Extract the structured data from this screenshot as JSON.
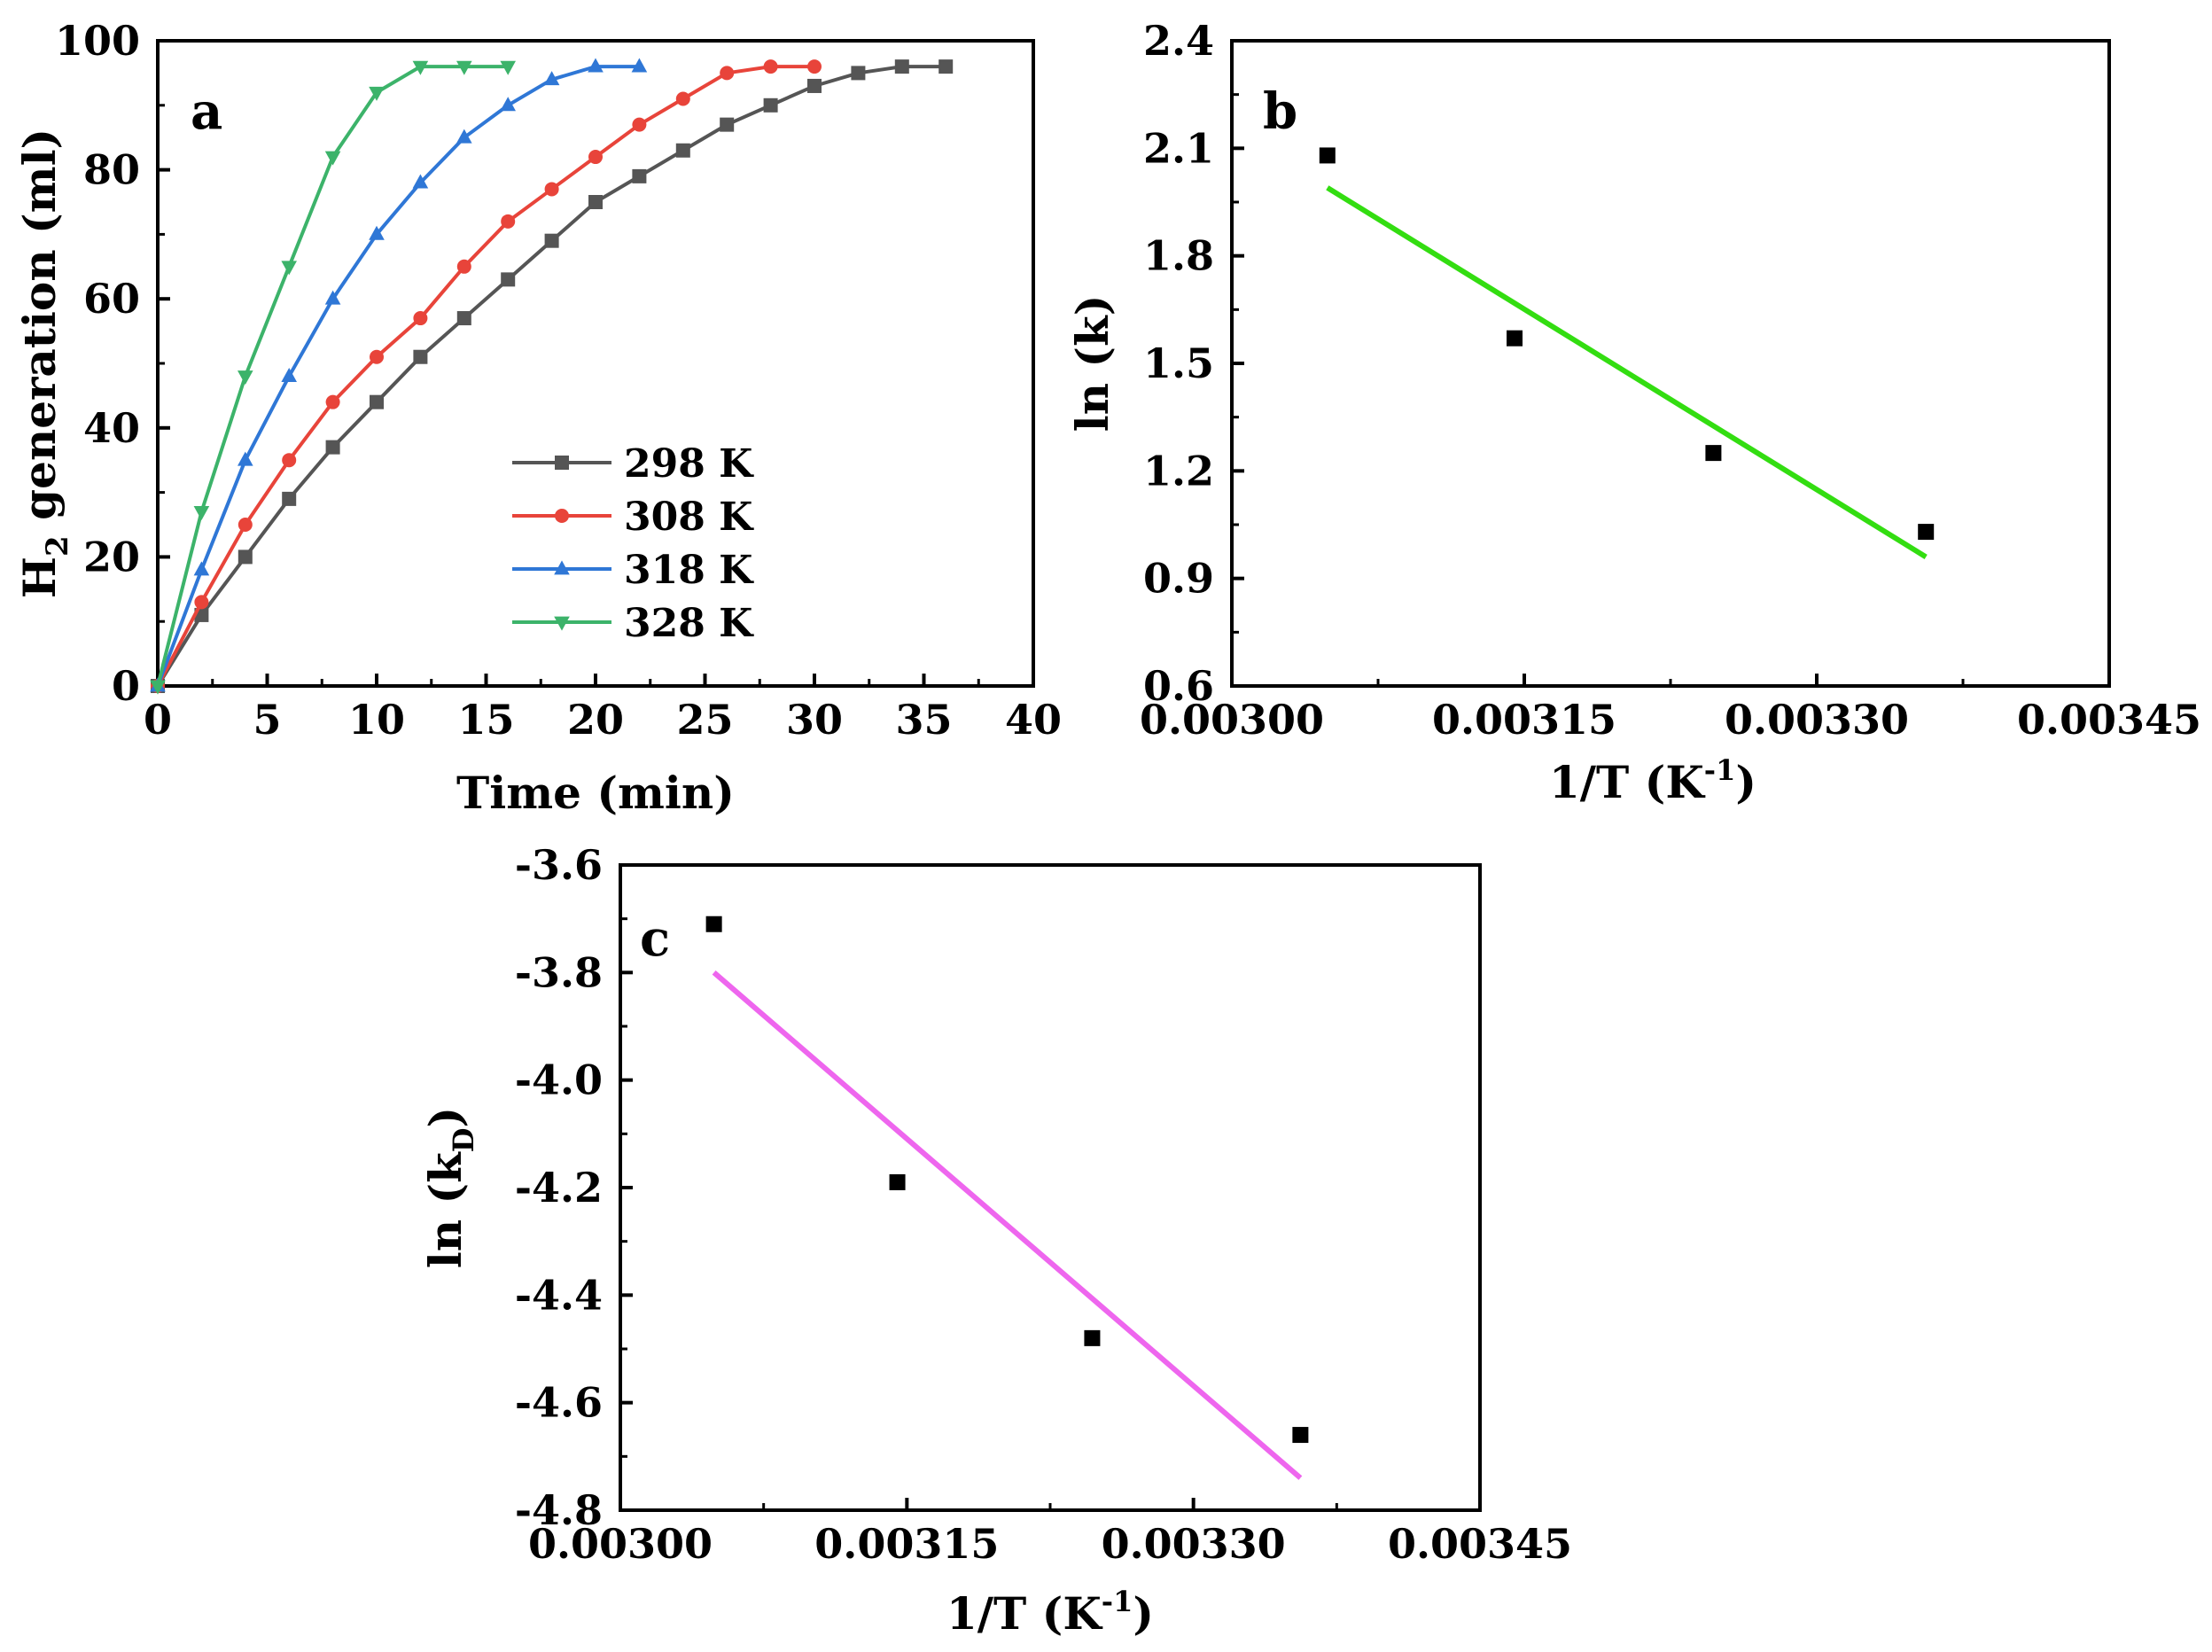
{
  "chart_data": [
    {
      "type": "line",
      "panel_label": "a",
      "xlabel": "Time (min)",
      "ylabel_main": "H",
      "ylabel_sub": "2",
      "ylabel_rest": " generation (ml)",
      "xlim": [
        0,
        40
      ],
      "ylim": [
        0,
        100
      ],
      "x_ticks": [
        "0",
        "5",
        "10",
        "15",
        "20",
        "25",
        "30",
        "35",
        "40"
      ],
      "y_ticks": [
        "0",
        "20",
        "40",
        "60",
        "80",
        "100"
      ],
      "legend_position": "lower-center",
      "series": [
        {
          "name": "298 K",
          "color": "#555555",
          "marker": "square",
          "x": [
            0,
            2,
            4,
            6,
            8,
            10,
            12,
            14,
            16,
            18,
            20,
            22,
            24,
            26,
            28,
            30,
            32,
            34,
            36
          ],
          "values": [
            0,
            11,
            20,
            29,
            37,
            44,
            51,
            57,
            63,
            69,
            75,
            79,
            83,
            87,
            90,
            93,
            95,
            96,
            96
          ]
        },
        {
          "name": "308 K",
          "color": "#e8443a",
          "marker": "circle",
          "x": [
            0,
            2,
            4,
            6,
            8,
            10,
            12,
            14,
            16,
            18,
            20,
            22,
            24,
            26,
            28,
            30
          ],
          "values": [
            0,
            13,
            25,
            35,
            44,
            51,
            57,
            65,
            72,
            77,
            82,
            87,
            91,
            95,
            96,
            96
          ]
        },
        {
          "name": "318 K",
          "color": "#2f77d6",
          "marker": "triangle-up",
          "x": [
            0,
            2,
            4,
            6,
            8,
            10,
            12,
            14,
            16,
            18,
            20,
            22
          ],
          "values": [
            0,
            18,
            35,
            48,
            60,
            70,
            78,
            85,
            90,
            94,
            96,
            96
          ]
        },
        {
          "name": "328 K",
          "color": "#3cb36a",
          "marker": "triangle-down",
          "x": [
            0,
            2,
            4,
            6,
            8,
            10,
            12,
            14,
            16
          ],
          "values": [
            0,
            27,
            48,
            65,
            82,
            92,
            96,
            96,
            96
          ]
        }
      ]
    },
    {
      "type": "scatter",
      "panel_label": "b",
      "xlabel_main": "1/T (K",
      "xlabel_sup": "-1",
      "xlabel_end": ")",
      "ylabel": "ln (k)",
      "xlim": [
        0.003,
        0.00345
      ],
      "ylim": [
        0.6,
        2.4
      ],
      "x_ticks": [
        "0.00300",
        "0.00315",
        "0.00330",
        "0.00345"
      ],
      "y_ticks": [
        "0.6",
        "0.9",
        "1.2",
        "1.5",
        "1.8",
        "2.1",
        "2.4"
      ],
      "points": {
        "x": [
          0.003049,
          0.003145,
          0.003247,
          0.003356
        ],
        "y": [
          2.08,
          1.57,
          1.25,
          1.03
        ]
      },
      "fit_line": {
        "color": "#33dd11",
        "x": [
          0.003049,
          0.003356
        ],
        "y": [
          1.99,
          0.96
        ]
      }
    },
    {
      "type": "scatter",
      "panel_label": "c",
      "xlabel_main": "1/T (K",
      "xlabel_sup": "-1",
      "xlabel_end": ")",
      "ylabel_main": "ln (k",
      "ylabel_sub": "D",
      "ylabel_end": ")",
      "xlim": [
        0.003,
        0.00345
      ],
      "ylim": [
        -4.8,
        -3.6
      ],
      "x_ticks": [
        "0.00300",
        "0.00315",
        "0.00330",
        "0.00345"
      ],
      "y_ticks": [
        "-4.8",
        "-4.6",
        "-4.4",
        "-4.2",
        "-4.0",
        "-3.8",
        "-3.6"
      ],
      "points": {
        "x": [
          0.003049,
          0.003145,
          0.003247,
          0.003356
        ],
        "y": [
          -3.71,
          -4.19,
          -4.48,
          -4.66
        ]
      },
      "fit_line": {
        "color": "#ee66ee",
        "x": [
          0.003049,
          0.003356
        ],
        "y": [
          -3.8,
          -4.74
        ]
      }
    }
  ]
}
